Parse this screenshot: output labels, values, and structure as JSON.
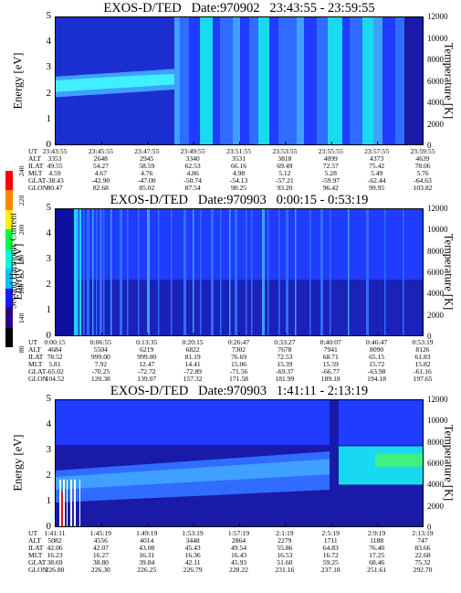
{
  "colorbar": {
    "label": "Second Harmonic Current",
    "ticks": [
      "80",
      "140",
      "160",
      "180",
      "200",
      "220",
      "240"
    ],
    "colors": [
      "#000000",
      "#2d0080",
      "#1a1aff",
      "#00c0ff",
      "#00ffd8",
      "#00ff44",
      "#fff000",
      "#ff8800",
      "#ff0000"
    ]
  },
  "chart_data": [
    {
      "type": "heatmap",
      "title": "EXOS-D/TED   Date:970902   23:43:55 - 23:59:55",
      "ylabel": "Energy [eV]",
      "y2label": "Temperature [K]",
      "ylim": [
        0,
        5
      ],
      "y2lim": [
        0,
        12000
      ],
      "yticks": [
        "0",
        "1",
        "2",
        "3",
        "4",
        "5"
      ],
      "y2ticks": [
        "0",
        "2000",
        "4000",
        "6000",
        "8000",
        "10000",
        "12000"
      ],
      "ephemeris_labels": [
        "UT",
        "ALT",
        "ILAT",
        "MLT",
        "GLAT",
        "GLON"
      ],
      "ephemeris": [
        [
          "23:43:55",
          "23:45:55",
          "23:47:55",
          "23:49:55",
          "23:51:55",
          "23:53:55",
          "23:55:55",
          "23:57:55",
          "23:59:55"
        ],
        [
          "3353",
          "2648",
          "2945",
          "3340",
          "3531",
          "3818",
          "4099",
          "4373",
          "4639"
        ],
        [
          "49.55",
          "54.27",
          "58.59",
          "62.53",
          "66.16",
          "69.49",
          "72.57",
          "75.42",
          "78.06"
        ],
        [
          "4.59",
          "4.67",
          "4.76",
          "4.86",
          "4.98",
          "5.12",
          "5.28",
          "5.49",
          "5.76"
        ],
        [
          "-38.43",
          "-42.90",
          "-47.00",
          "-50.74",
          "-54.13",
          "-57.21",
          "-59.97",
          "-62.44",
          "-64.63"
        ],
        [
          "80.47",
          "82.68",
          "85.02",
          "87.54",
          "90.25",
          "93.20",
          "96.42",
          "99.95",
          "103.82"
        ]
      ]
    },
    {
      "type": "heatmap",
      "title": "EXOS-D/TED   Date:970903   0:00:15 - 0:53:19",
      "ylabel": "Energy [eV]",
      "y2label": "Temperature [K]",
      "ylim": [
        0,
        5
      ],
      "y2lim": [
        0,
        12000
      ],
      "yticks": [
        "0",
        "1",
        "2",
        "3",
        "4",
        "5"
      ],
      "y2ticks": [
        "0",
        "2000",
        "4000",
        "6000",
        "8000",
        "10000",
        "12000"
      ],
      "ephemeris_labels": [
        "UT",
        "ALT",
        "ILAT",
        "MLT",
        "GLAT",
        "GLON"
      ],
      "ephemeris": [
        [
          "0:00:15",
          "0:06:55",
          "0:13:35",
          "0:20:15",
          "0:26:47",
          "0:33:27",
          "0:40:07",
          "0:46:47",
          "0:53:19"
        ],
        [
          "4684",
          "5504",
          "6219",
          "6822",
          "7302",
          "7678",
          "7941",
          "8090",
          "8126"
        ],
        [
          "78.52",
          "999.00",
          "999.00",
          "81.19",
          "76.69",
          "72.53",
          "68.71",
          "65.15",
          "61.83"
        ],
        [
          "5.81",
          "7.92",
          "12.47",
          "14.41",
          "15.06",
          "15.39",
          "15.59",
          "15.72",
          "15.82"
        ],
        [
          "-65.02",
          "-70.25",
          "-72.72",
          "-72.89",
          "-71.56",
          "-69.37",
          "-66.77",
          "-63.98",
          "-61.16"
        ],
        [
          "104.52",
          "120.38",
          "139.07",
          "157.32",
          "171.58",
          "181.99",
          "189.18",
          "194.18",
          "197.65"
        ]
      ]
    },
    {
      "type": "heatmap",
      "title": "EXOS-D/TED   Date:970903   1:41:11 - 2:13:19",
      "ylabel": "Energy [eV]",
      "y2label": "Temperature [K]",
      "ylim": [
        0,
        5
      ],
      "y2lim": [
        0,
        12000
      ],
      "yticks": [
        "0",
        "1",
        "2",
        "3",
        "4",
        "5"
      ],
      "y2ticks": [
        "0",
        "2000",
        "4000",
        "6000",
        "8000",
        "10000",
        "12000"
      ],
      "ephemeris_labels": [
        "UT",
        "ALT",
        "ILAT",
        "MLT",
        "GLAT",
        "GLON"
      ],
      "ephemeris": [
        [
          "1:41:11",
          "1:45:19",
          "1:49:19",
          "1:53:19",
          "1:57:19",
          "2:1:19",
          "2:5:19",
          "2:9:19",
          "2:13:19"
        ],
        [
          "5082",
          "4556",
          "4014",
          "3448",
          "2864",
          "2279",
          "1711",
          "1188",
          "747"
        ],
        [
          "42.06",
          "42.07",
          "43.08",
          "45.43",
          "49.54",
          "55.86",
          "64.83",
          "76.40",
          "83.66"
        ],
        [
          "16.23",
          "16.27",
          "16.31",
          "16.36",
          "16.43",
          "16.53",
          "16.72",
          "17.25",
          "22.68"
        ],
        [
          "38.69",
          "38.80",
          "39.84",
          "42.11",
          "45.93",
          "51.60",
          "59.25",
          "68.46",
          "75.32"
        ],
        [
          "226.80",
          "226.30",
          "226.25",
          "226.79",
          "228.22",
          "231.16",
          "237.18",
          "251.61",
          "292.70"
        ]
      ]
    }
  ]
}
